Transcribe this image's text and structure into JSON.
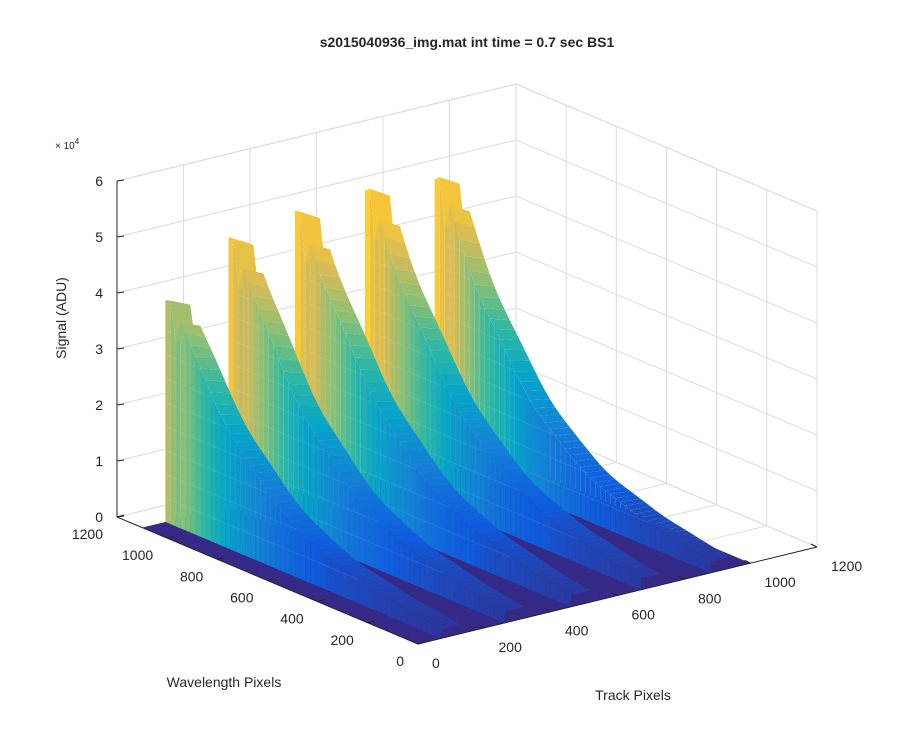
{
  "chart_data": {
    "type": "surface",
    "title": "s2015040936_img.mat int time = 0.7 sec   BS1",
    "xlabel": "Track Pixels",
    "ylabel": "Wavelength Pixels",
    "zlabel": "Signal (ADU)",
    "z_exponent_label": "× 10",
    "z_exponent_power": "4",
    "xlim": [
      0,
      1200
    ],
    "ylim": [
      0,
      1200
    ],
    "zlim": [
      0,
      60000
    ],
    "x_ticks": [
      "0",
      "200",
      "400",
      "600",
      "800",
      "1000",
      "1200"
    ],
    "y_ticks": [
      "0",
      "200",
      "400",
      "600",
      "800",
      "1000",
      "1200"
    ],
    "z_ticks": [
      "0",
      "1",
      "2",
      "3",
      "4",
      "5",
      "6"
    ],
    "x_tick_values": [
      0,
      200,
      400,
      600,
      800,
      1000,
      1200
    ],
    "y_tick_values": [
      0,
      200,
      400,
      600,
      800,
      1000,
      1200
    ],
    "z_tick_values": [
      0,
      10000,
      20000,
      30000,
      40000,
      50000,
      60000
    ],
    "grid": true,
    "colormap": "parula",
    "colormap_stops": [
      "#352a87",
      "#0f5cdd",
      "#1481d6",
      "#06a4ca",
      "#2eb7a4",
      "#87bf77",
      "#d1bb59",
      "#fec832",
      "#f9fb0e"
    ],
    "x_extent": [
      0,
      1000
    ],
    "y_extent": [
      0,
      1100
    ],
    "tracks": [
      {
        "x_center": 100,
        "width": 30,
        "peak": 43000
      },
      {
        "x_center": 290,
        "width": 30,
        "peak": 53000
      },
      {
        "x_center": 490,
        "width": 30,
        "peak": 55000
      },
      {
        "x_center": 700,
        "width": 30,
        "peak": 54000
      },
      {
        "x_center": 910,
        "width": 30,
        "peak": 53000
      }
    ]
  }
}
